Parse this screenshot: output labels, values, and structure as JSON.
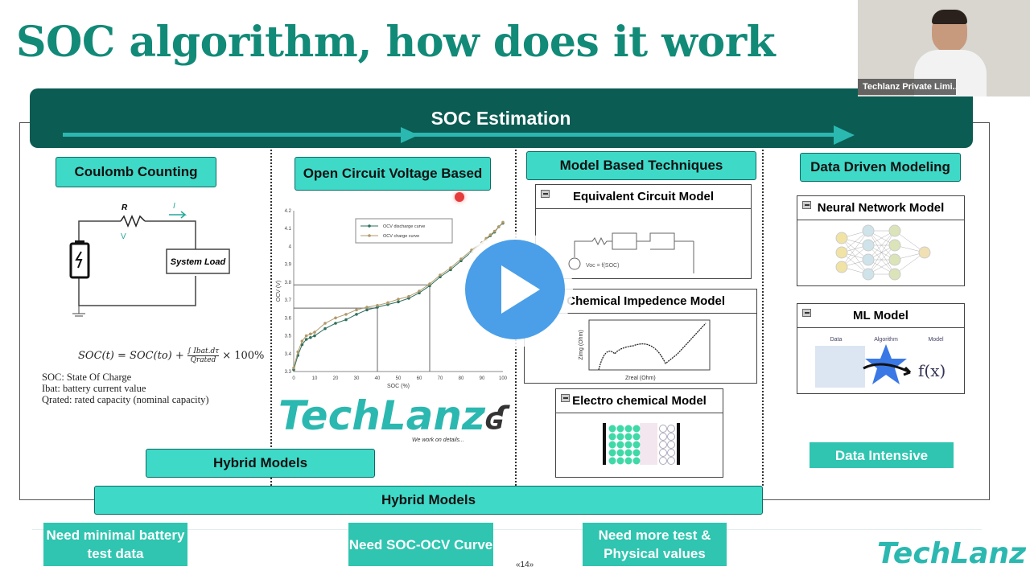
{
  "slide": {
    "title": "SOC algorithm, how does it work",
    "banner": "SOC Estimation",
    "page_number": "«14»",
    "columns": {
      "coulomb": "Coulomb Counting",
      "ocv": "Open Circuit Voltage Based",
      "model": "Model Based Techniques",
      "data": "Data Driven Modeling"
    },
    "circuit": {
      "resistor": "R",
      "current": "I",
      "voltage": "V",
      "load": "System Load"
    },
    "formula": {
      "equation": "SOC(t) = SOC(to) + ∫ Ibat.dτ / Qrated × 100%",
      "lhs": "SOC(t) = SOC(to) +",
      "num": "∫ Ibat.dτ",
      "den": "Qrated",
      "rhs": "× 100%",
      "defs": [
        "SOC: State Of Charge",
        "Ibat: battery current value",
        "Qrated: rated capacity (nominal capacity)"
      ]
    },
    "panels": {
      "ecm": "Equivalent Circuit Model",
      "ecm_voc": "Voc = f(SOC)",
      "eis": "o Chemical Impedence Model",
      "eis_xlabel": "Zreal (Ohm)",
      "eis_ylabel": "Zimg (Ohm)",
      "echem": "Electro chemical Model",
      "nn": "Neural Network Model",
      "ml": "ML Model",
      "ml_labels": [
        "Data",
        "Algorithm",
        "Model"
      ],
      "ml_fx": "f(x)"
    },
    "hybrid_inner": "Hybrid Models",
    "hybrid_outer": "Hybrid Models",
    "data_intensive": "Data Intensive",
    "needs": [
      "Need minimal battery test data",
      "Need SOC-OCV Curve",
      "Need more test & Physical values"
    ],
    "logo": "TechLanz",
    "logo_tagline": "We work on details...",
    "colors": {
      "title": "#128a78",
      "banner": "#0b5c53",
      "pill": "#3fd9c8",
      "need_box": "#2fc5b0",
      "play": "#4a9fe8"
    }
  },
  "video": {
    "presenter_label": "Techlanz Private Limi...",
    "play_icon": "play-icon"
  },
  "chart_data": {
    "type": "line",
    "xlabel": "SOC (%)",
    "ylabel": "OCV (V)",
    "xlim": [
      0,
      100
    ],
    "ylim": [
      3.3,
      4.2
    ],
    "xticks": [
      0,
      10,
      20,
      30,
      40,
      50,
      60,
      70,
      80,
      90,
      100
    ],
    "yticks": [
      3.3,
      3.4,
      3.5,
      3.6,
      3.7,
      3.8,
      3.9,
      4.0,
      4.1,
      4.2
    ],
    "x": [
      0,
      2,
      4,
      6,
      8,
      10,
      15,
      20,
      25,
      30,
      35,
      40,
      45,
      50,
      55,
      60,
      65,
      70,
      75,
      80,
      85,
      90,
      92,
      94,
      96,
      98,
      100
    ],
    "series": [
      {
        "name": "OCV discharge curve",
        "color": "#2e6f5e",
        "values": [
          3.31,
          3.39,
          3.45,
          3.48,
          3.49,
          3.5,
          3.54,
          3.57,
          3.59,
          3.62,
          3.645,
          3.66,
          3.675,
          3.69,
          3.71,
          3.74,
          3.78,
          3.83,
          3.87,
          3.92,
          3.97,
          4.02,
          4.04,
          4.06,
          4.08,
          4.11,
          4.13
        ]
      },
      {
        "name": "OCV charge curve",
        "color": "#b09a6a",
        "values": [
          3.32,
          3.41,
          3.47,
          3.5,
          3.51,
          3.52,
          3.57,
          3.6,
          3.62,
          3.645,
          3.66,
          3.67,
          3.685,
          3.705,
          3.72,
          3.75,
          3.79,
          3.84,
          3.88,
          3.93,
          3.98,
          4.02,
          4.045,
          4.065,
          4.085,
          4.11,
          4.135
        ]
      }
    ],
    "reference_lines": [
      {
        "soc": 40,
        "ocv": 3.655
      },
      {
        "soc": 65,
        "ocv": 3.785
      }
    ],
    "legend": "top-center"
  }
}
